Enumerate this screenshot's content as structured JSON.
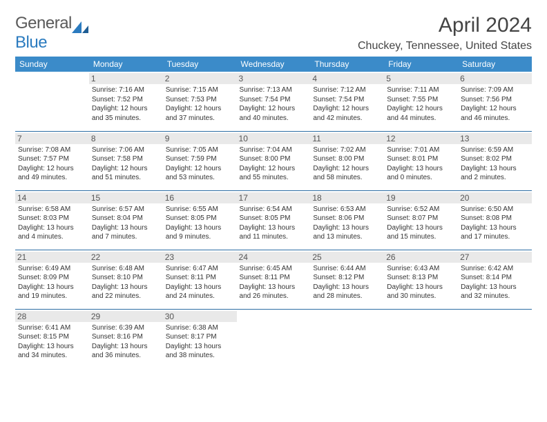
{
  "logo": {
    "word1": "General",
    "word2": "Blue"
  },
  "title": "April 2024",
  "location": "Chuckey, Tennessee, United States",
  "colors": {
    "header_bg": "#3b8bc9",
    "header_text": "#ffffff",
    "row_border": "#2b6ca3",
    "daynum_bg": "#e9e9e9",
    "text": "#333333",
    "logo_gray": "#5a5a5a",
    "logo_blue": "#2b7bbf"
  },
  "typography": {
    "title_fontsize": 30,
    "location_fontsize": 16,
    "header_fontsize": 12,
    "daynum_fontsize": 12,
    "body_fontsize": 10
  },
  "day_headers": [
    "Sunday",
    "Monday",
    "Tuesday",
    "Wednesday",
    "Thursday",
    "Friday",
    "Saturday"
  ],
  "weeks": [
    [
      null,
      {
        "n": "1",
        "sunrise": "7:16 AM",
        "sunset": "7:52 PM",
        "daylight": "12 hours and 35 minutes."
      },
      {
        "n": "2",
        "sunrise": "7:15 AM",
        "sunset": "7:53 PM",
        "daylight": "12 hours and 37 minutes."
      },
      {
        "n": "3",
        "sunrise": "7:13 AM",
        "sunset": "7:54 PM",
        "daylight": "12 hours and 40 minutes."
      },
      {
        "n": "4",
        "sunrise": "7:12 AM",
        "sunset": "7:54 PM",
        "daylight": "12 hours and 42 minutes."
      },
      {
        "n": "5",
        "sunrise": "7:11 AM",
        "sunset": "7:55 PM",
        "daylight": "12 hours and 44 minutes."
      },
      {
        "n": "6",
        "sunrise": "7:09 AM",
        "sunset": "7:56 PM",
        "daylight": "12 hours and 46 minutes."
      }
    ],
    [
      {
        "n": "7",
        "sunrise": "7:08 AM",
        "sunset": "7:57 PM",
        "daylight": "12 hours and 49 minutes."
      },
      {
        "n": "8",
        "sunrise": "7:06 AM",
        "sunset": "7:58 PM",
        "daylight": "12 hours and 51 minutes."
      },
      {
        "n": "9",
        "sunrise": "7:05 AM",
        "sunset": "7:59 PM",
        "daylight": "12 hours and 53 minutes."
      },
      {
        "n": "10",
        "sunrise": "7:04 AM",
        "sunset": "8:00 PM",
        "daylight": "12 hours and 55 minutes."
      },
      {
        "n": "11",
        "sunrise": "7:02 AM",
        "sunset": "8:00 PM",
        "daylight": "12 hours and 58 minutes."
      },
      {
        "n": "12",
        "sunrise": "7:01 AM",
        "sunset": "8:01 PM",
        "daylight": "13 hours and 0 minutes."
      },
      {
        "n": "13",
        "sunrise": "6:59 AM",
        "sunset": "8:02 PM",
        "daylight": "13 hours and 2 minutes."
      }
    ],
    [
      {
        "n": "14",
        "sunrise": "6:58 AM",
        "sunset": "8:03 PM",
        "daylight": "13 hours and 4 minutes."
      },
      {
        "n": "15",
        "sunrise": "6:57 AM",
        "sunset": "8:04 PM",
        "daylight": "13 hours and 7 minutes."
      },
      {
        "n": "16",
        "sunrise": "6:55 AM",
        "sunset": "8:05 PM",
        "daylight": "13 hours and 9 minutes."
      },
      {
        "n": "17",
        "sunrise": "6:54 AM",
        "sunset": "8:05 PM",
        "daylight": "13 hours and 11 minutes."
      },
      {
        "n": "18",
        "sunrise": "6:53 AM",
        "sunset": "8:06 PM",
        "daylight": "13 hours and 13 minutes."
      },
      {
        "n": "19",
        "sunrise": "6:52 AM",
        "sunset": "8:07 PM",
        "daylight": "13 hours and 15 minutes."
      },
      {
        "n": "20",
        "sunrise": "6:50 AM",
        "sunset": "8:08 PM",
        "daylight": "13 hours and 17 minutes."
      }
    ],
    [
      {
        "n": "21",
        "sunrise": "6:49 AM",
        "sunset": "8:09 PM",
        "daylight": "13 hours and 19 minutes."
      },
      {
        "n": "22",
        "sunrise": "6:48 AM",
        "sunset": "8:10 PM",
        "daylight": "13 hours and 22 minutes."
      },
      {
        "n": "23",
        "sunrise": "6:47 AM",
        "sunset": "8:11 PM",
        "daylight": "13 hours and 24 minutes."
      },
      {
        "n": "24",
        "sunrise": "6:45 AM",
        "sunset": "8:11 PM",
        "daylight": "13 hours and 26 minutes."
      },
      {
        "n": "25",
        "sunrise": "6:44 AM",
        "sunset": "8:12 PM",
        "daylight": "13 hours and 28 minutes."
      },
      {
        "n": "26",
        "sunrise": "6:43 AM",
        "sunset": "8:13 PM",
        "daylight": "13 hours and 30 minutes."
      },
      {
        "n": "27",
        "sunrise": "6:42 AM",
        "sunset": "8:14 PM",
        "daylight": "13 hours and 32 minutes."
      }
    ],
    [
      {
        "n": "28",
        "sunrise": "6:41 AM",
        "sunset": "8:15 PM",
        "daylight": "13 hours and 34 minutes."
      },
      {
        "n": "29",
        "sunrise": "6:39 AM",
        "sunset": "8:16 PM",
        "daylight": "13 hours and 36 minutes."
      },
      {
        "n": "30",
        "sunrise": "6:38 AM",
        "sunset": "8:17 PM",
        "daylight": "13 hours and 38 minutes."
      },
      null,
      null,
      null,
      null
    ]
  ],
  "labels": {
    "sunrise": "Sunrise:",
    "sunset": "Sunset:",
    "daylight": "Daylight:"
  }
}
